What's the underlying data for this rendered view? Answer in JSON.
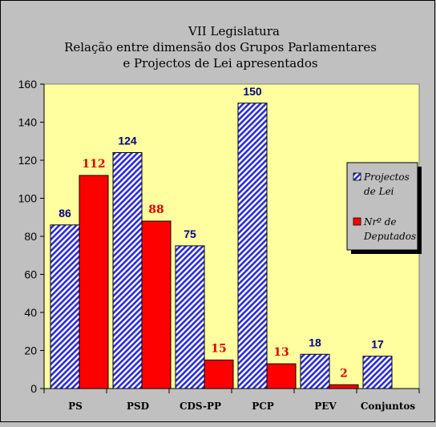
{
  "chart_data": {
    "type": "bar",
    "title": [
      "VII Legislatura",
      "Relação entre dimensão dos Grupos Parlamentares",
      "e Projectos de Lei apresentados"
    ],
    "categories": [
      "PS",
      "PSD",
      "CDS-PP",
      "PCP",
      "PEV",
      "Conjuntos"
    ],
    "series": [
      {
        "name": "Projectos de Lei",
        "values": [
          86,
          124,
          75,
          150,
          18,
          17
        ],
        "color": "#2a2ae0",
        "pattern": "diagonal-hatch-blue-white",
        "label_color": "#00007a"
      },
      {
        "name": "Nrº de Deputados",
        "values": [
          112,
          88,
          15,
          13,
          2,
          null
        ],
        "color": "#ff0000",
        "label_color": "#e00000"
      }
    ],
    "ylim": [
      0,
      160
    ],
    "yticks": [
      0,
      20,
      40,
      60,
      80,
      100,
      120,
      140,
      160
    ],
    "xlabel": "",
    "ylabel": "",
    "grid": false,
    "plot_background": "#ffffa0",
    "chart_background": "#c0c0c0",
    "legend": {
      "placement": "right",
      "entries": [
        {
          "lines": [
            "Projectos",
            "de Lei"
          ],
          "series": 0
        },
        {
          "lines": [
            "Nrº  de",
            "Deputados"
          ],
          "series": 1
        }
      ]
    }
  }
}
